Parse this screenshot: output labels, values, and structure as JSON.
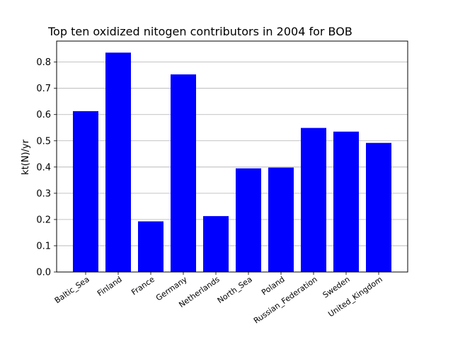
{
  "chart_data": {
    "type": "bar",
    "title": "Top ten oxidized nitogen contributors in 2004 for  BOB",
    "xlabel": "",
    "ylabel": "kt(N)/yr",
    "categories": [
      "Baltic_Sea",
      "Finland",
      "France",
      "Germany",
      "Netherlands",
      "North_Sea",
      "Poland",
      "Russian_Federation",
      "Sweden",
      "United_Kingdom"
    ],
    "values": [
      0.613,
      0.836,
      0.193,
      0.753,
      0.213,
      0.395,
      0.398,
      0.549,
      0.535,
      0.492
    ],
    "ylim": [
      0,
      0.88
    ],
    "yticks": [
      0.0,
      0.1,
      0.2,
      0.3,
      0.4,
      0.5,
      0.6,
      0.7,
      0.8
    ],
    "ytick_labels": [
      "0.0",
      "0.1",
      "0.2",
      "0.3",
      "0.4",
      "0.5",
      "0.6",
      "0.7",
      "0.8"
    ],
    "grid": "y",
    "bar_color": "#0000ff"
  }
}
